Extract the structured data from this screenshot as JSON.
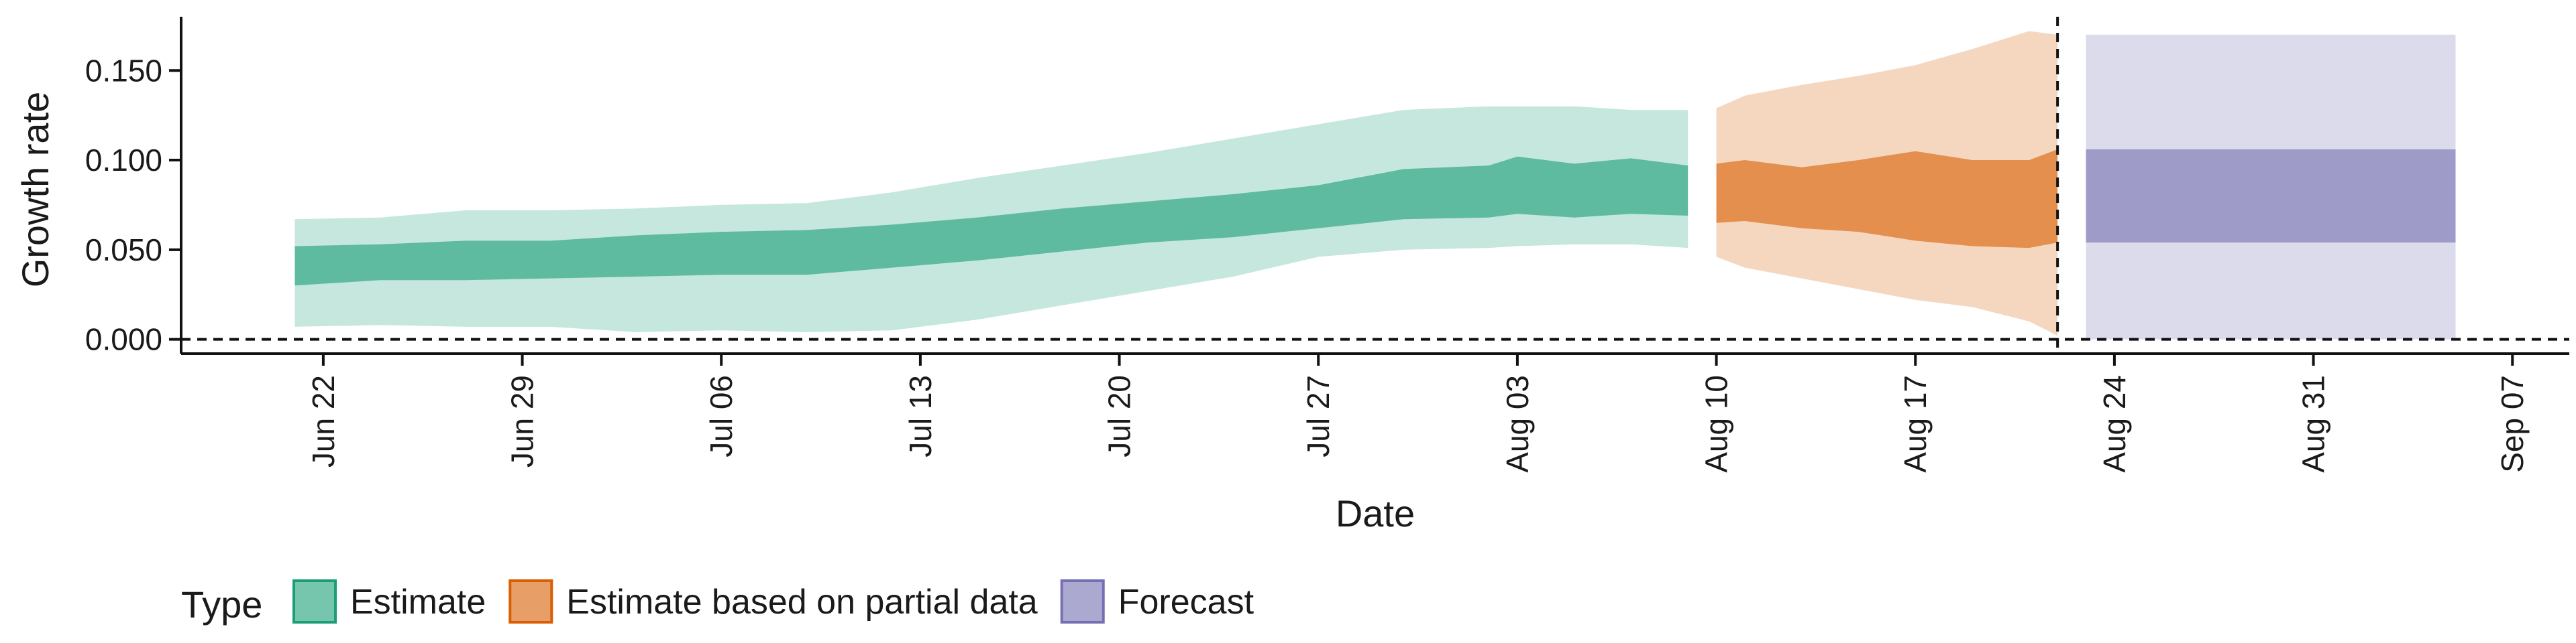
{
  "chart_data": {
    "type": "area",
    "xlabel": "Date",
    "ylabel": "Growth rate",
    "ylim": [
      -0.008,
      0.18
    ],
    "xlim": [
      "2020-06-17",
      "2020-09-09"
    ],
    "x_ticks": [
      "2020-06-22",
      "2020-06-29",
      "2020-07-06",
      "2020-07-13",
      "2020-07-20",
      "2020-07-27",
      "2020-08-03",
      "2020-08-10",
      "2020-08-17",
      "2020-08-24",
      "2020-08-31",
      "2020-09-07"
    ],
    "x_tick_labels": [
      "Jun 22",
      "Jun 29",
      "Jul 06",
      "Jul 13",
      "Jul 20",
      "Jul 27",
      "Aug 03",
      "Aug 10",
      "Aug 17",
      "Aug 24",
      "Aug 31",
      "Sep 07"
    ],
    "y_ticks": [
      0.0,
      0.05,
      0.1,
      0.15
    ],
    "y_tick_labels": [
      "0.000",
      "0.050",
      "0.100",
      "0.150"
    ],
    "grid": false,
    "reference_lines": [
      {
        "orientation": "horizontal",
        "value": 0.0,
        "style": "dashed"
      },
      {
        "orientation": "vertical",
        "value": "2020-08-22",
        "style": "dashed"
      }
    ],
    "legend": {
      "title": "Type",
      "position": "bottom"
    },
    "series": [
      {
        "name": "Estimate",
        "color": "#1b9e77",
        "x": [
          "2020-06-21",
          "2020-06-24",
          "2020-06-27",
          "2020-06-30",
          "2020-07-03",
          "2020-07-06",
          "2020-07-09",
          "2020-07-12",
          "2020-07-15",
          "2020-07-18",
          "2020-07-21",
          "2020-07-24",
          "2020-07-27",
          "2020-07-30",
          "2020-08-02",
          "2020-08-03",
          "2020-08-05",
          "2020-08-07",
          "2020-08-09"
        ],
        "lower90": [
          0.007,
          0.008,
          0.007,
          0.007,
          0.004,
          0.005,
          0.004,
          0.005,
          0.011,
          0.019,
          0.027,
          0.035,
          0.046,
          0.05,
          0.051,
          0.052,
          0.053,
          0.053,
          0.051
        ],
        "lower50": [
          0.03,
          0.033,
          0.033,
          0.034,
          0.035,
          0.036,
          0.036,
          0.04,
          0.044,
          0.049,
          0.054,
          0.057,
          0.062,
          0.067,
          0.068,
          0.07,
          0.068,
          0.07,
          0.069
        ],
        "upper50": [
          0.052,
          0.053,
          0.055,
          0.055,
          0.058,
          0.06,
          0.061,
          0.064,
          0.068,
          0.073,
          0.077,
          0.081,
          0.086,
          0.095,
          0.097,
          0.102,
          0.098,
          0.101,
          0.097
        ],
        "upper90": [
          0.067,
          0.068,
          0.072,
          0.072,
          0.073,
          0.075,
          0.076,
          0.082,
          0.09,
          0.097,
          0.104,
          0.112,
          0.12,
          0.128,
          0.13,
          0.13,
          0.13,
          0.128,
          0.128
        ]
      },
      {
        "name": "Estimate based on partial data",
        "color": "#d95f02",
        "x": [
          "2020-08-10",
          "2020-08-11",
          "2020-08-13",
          "2020-08-15",
          "2020-08-17",
          "2020-08-19",
          "2020-08-21",
          "2020-08-22"
        ],
        "lower90": [
          0.046,
          0.04,
          0.034,
          0.028,
          0.022,
          0.018,
          0.01,
          0.002
        ],
        "lower50": [
          0.065,
          0.066,
          0.062,
          0.06,
          0.055,
          0.052,
          0.051,
          0.054
        ],
        "upper50": [
          0.098,
          0.1,
          0.096,
          0.1,
          0.105,
          0.1,
          0.1,
          0.106
        ],
        "upper90": [
          0.129,
          0.136,
          0.142,
          0.147,
          0.153,
          0.162,
          0.172,
          0.17
        ]
      },
      {
        "name": "Forecast",
        "color": "#7570b3",
        "x": [
          "2020-08-23",
          "2020-09-05"
        ],
        "lower90": [
          0.0,
          0.0
        ],
        "lower50": [
          0.054,
          0.054
        ],
        "upper50": [
          0.106,
          0.106
        ],
        "upper90": [
          0.17,
          0.17
        ]
      }
    ]
  }
}
